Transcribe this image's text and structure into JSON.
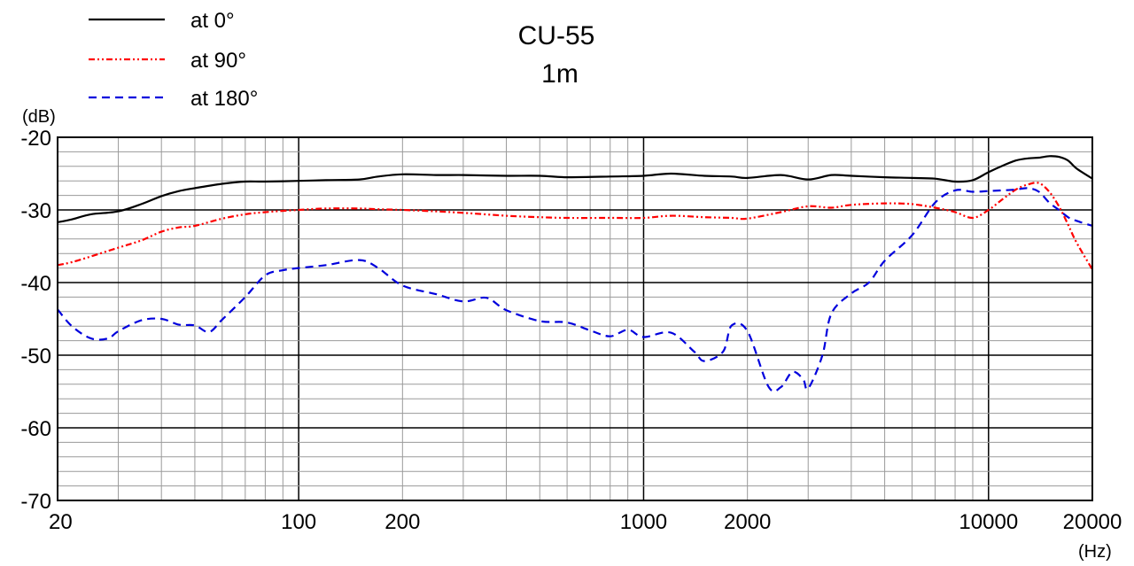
{
  "chart_data": {
    "type": "line",
    "title": "CU-55",
    "subtitle": "1m",
    "xlabel": "(Hz)",
    "ylabel": "(dB)",
    "x_scale": "log",
    "xlim": [
      20,
      20000
    ],
    "ylim": [
      -70,
      -20
    ],
    "grid": true,
    "legend_position": "top-left",
    "x_tick_labels": [
      "20",
      "100",
      "200",
      "1000",
      "2000",
      "10000",
      "20000"
    ],
    "x_tick_values": [
      20,
      100,
      200,
      1000,
      2000,
      10000,
      20000
    ],
    "y_tick_labels": [
      "-20",
      "-30",
      "-40",
      "-50",
      "-60",
      "-70"
    ],
    "y_tick_values": [
      -20,
      -30,
      -40,
      -50,
      -60,
      -70
    ],
    "series": [
      {
        "name": "at 0°",
        "color": "#000000",
        "dash": "solid",
        "x": [
          20,
          22,
          25,
          30,
          35,
          40,
          45,
          50,
          60,
          70,
          80,
          100,
          120,
          150,
          170,
          200,
          250,
          300,
          400,
          500,
          600,
          800,
          1000,
          1200,
          1500,
          1800,
          2000,
          2500,
          3000,
          3500,
          4000,
          5000,
          6000,
          7000,
          8000,
          9000,
          10000,
          11000,
          12000,
          13000,
          14000,
          15000,
          16000,
          17000,
          18000,
          20000
        ],
        "y": [
          -31.7,
          -31.3,
          -30.6,
          -30.2,
          -29.2,
          -28.1,
          -27.4,
          -27.0,
          -26.4,
          -26.1,
          -26.1,
          -26.0,
          -25.9,
          -25.8,
          -25.4,
          -25.1,
          -25.2,
          -25.2,
          -25.3,
          -25.3,
          -25.5,
          -25.4,
          -25.3,
          -25.0,
          -25.3,
          -25.4,
          -25.6,
          -25.2,
          -25.8,
          -25.2,
          -25.3,
          -25.5,
          -25.6,
          -25.7,
          -26.1,
          -25.9,
          -24.8,
          -23.9,
          -23.2,
          -22.9,
          -22.8,
          -22.6,
          -22.7,
          -23.2,
          -24.3,
          -25.7
        ]
      },
      {
        "name": "at 90°",
        "color": "#ff0000",
        "dash": "dash-dot-dot",
        "x": [
          20,
          22,
          25,
          30,
          35,
          40,
          45,
          50,
          60,
          70,
          80,
          100,
          120,
          150,
          170,
          200,
          250,
          300,
          400,
          500,
          600,
          800,
          1000,
          1200,
          1500,
          1800,
          2000,
          2500,
          3000,
          3500,
          4000,
          5000,
          6000,
          7000,
          8000,
          9000,
          10000,
          11000,
          12000,
          13000,
          14000,
          15000,
          16000,
          17000,
          18000,
          20000
        ],
        "y": [
          -37.6,
          -37.2,
          -36.4,
          -35.2,
          -34.2,
          -33.0,
          -32.4,
          -32.2,
          -31.2,
          -30.6,
          -30.3,
          -30.0,
          -29.8,
          -29.8,
          -29.9,
          -30.0,
          -30.2,
          -30.4,
          -30.8,
          -31.0,
          -31.1,
          -31.1,
          -31.1,
          -30.8,
          -31.0,
          -31.1,
          -31.2,
          -30.3,
          -29.5,
          -29.7,
          -29.3,
          -29.1,
          -29.2,
          -29.7,
          -30.3,
          -31.1,
          -30.0,
          -28.5,
          -27.2,
          -26.5,
          -26.3,
          -27.5,
          -29.5,
          -32.0,
          -34.5,
          -38.2
        ]
      },
      {
        "name": "at 180°",
        "color": "#0000dd",
        "dash": "dashed",
        "x": [
          20,
          22,
          25,
          28,
          30,
          35,
          40,
          45,
          50,
          55,
          60,
          70,
          80,
          90,
          100,
          120,
          150,
          170,
          200,
          250,
          300,
          350,
          400,
          500,
          600,
          700,
          800,
          900,
          1000,
          1200,
          1400,
          1500,
          1700,
          1800,
          2000,
          2300,
          2500,
          2700,
          2900,
          3000,
          3300,
          3500,
          4000,
          4500,
          5000,
          6000,
          7000,
          8000,
          9000,
          10000,
          11000,
          12000,
          13000,
          14000,
          15000,
          16000,
          17000,
          18000,
          20000
        ],
        "y": [
          -43.7,
          -46.0,
          -47.7,
          -47.7,
          -46.7,
          -45.2,
          -45.0,
          -45.8,
          -45.9,
          -46.8,
          -45.1,
          -42.0,
          -39.0,
          -38.3,
          -38.0,
          -37.6,
          -36.9,
          -38.0,
          -40.4,
          -41.6,
          -42.6,
          -42.1,
          -43.8,
          -45.3,
          -45.5,
          -46.6,
          -47.4,
          -46.5,
          -47.5,
          -46.9,
          -49.5,
          -50.8,
          -49.5,
          -45.9,
          -46.7,
          -54.3,
          -54.4,
          -52.3,
          -53.3,
          -54.6,
          -50.0,
          -44.3,
          -41.5,
          -40.0,
          -37.0,
          -33.5,
          -29.0,
          -27.3,
          -27.5,
          -27.4,
          -27.3,
          -27.2,
          -27.0,
          -27.5,
          -29.0,
          -30.0,
          -31.0,
          -31.5,
          -32.2
        ]
      }
    ]
  }
}
